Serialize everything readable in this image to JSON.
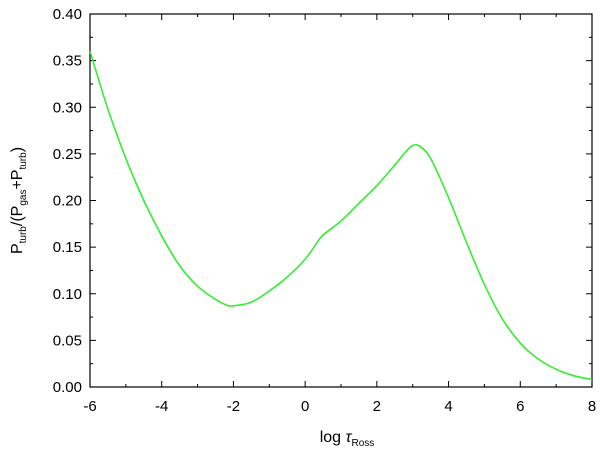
{
  "chart_data": {
    "type": "line",
    "title": "",
    "xlabel": {
      "prefix": "log ",
      "symbol": "τ",
      "sub": "Ross"
    },
    "ylabel": {
      "parts": [
        {
          "t": "P",
          "s": ""
        },
        {
          "t": "",
          "s": "turb"
        },
        {
          "t": "/(P",
          "s": ""
        },
        {
          "t": "",
          "s": "gas"
        },
        {
          "t": "+P",
          "s": ""
        },
        {
          "t": "",
          "s": "turb"
        },
        {
          "t": ")",
          "s": ""
        }
      ]
    },
    "xlim": [
      -6,
      8
    ],
    "ylim": [
      0,
      0.4
    ],
    "xticks": [
      "-6",
      "-4",
      "-2",
      "0",
      "2",
      "4",
      "6",
      "8"
    ],
    "yticks": [
      "0.00",
      "0.05",
      "0.10",
      "0.15",
      "0.20",
      "0.25",
      "0.30",
      "0.35",
      "0.40"
    ],
    "grid": false,
    "legend": "none",
    "series": [
      {
        "color": "#33ee33",
        "x": [
          -6,
          -5.5,
          -5,
          -4.5,
          -4,
          -3.5,
          -3,
          -2.5,
          -2.2,
          -2,
          -1.5,
          -1,
          -0.5,
          0,
          0.3,
          0.5,
          1,
          1.5,
          2,
          2.5,
          2.8,
          3,
          3.2,
          3.5,
          4,
          4.5,
          5,
          5.5,
          6,
          6.5,
          7,
          7.5,
          8
        ],
        "y": [
          0.36,
          0.298,
          0.245,
          0.2,
          0.162,
          0.13,
          0.108,
          0.094,
          0.088,
          0.087,
          0.091,
          0.103,
          0.118,
          0.137,
          0.153,
          0.163,
          0.178,
          0.197,
          0.216,
          0.238,
          0.252,
          0.259,
          0.258,
          0.245,
          0.203,
          0.155,
          0.11,
          0.073,
          0.047,
          0.03,
          0.019,
          0.012,
          0.008
        ]
      }
    ]
  }
}
